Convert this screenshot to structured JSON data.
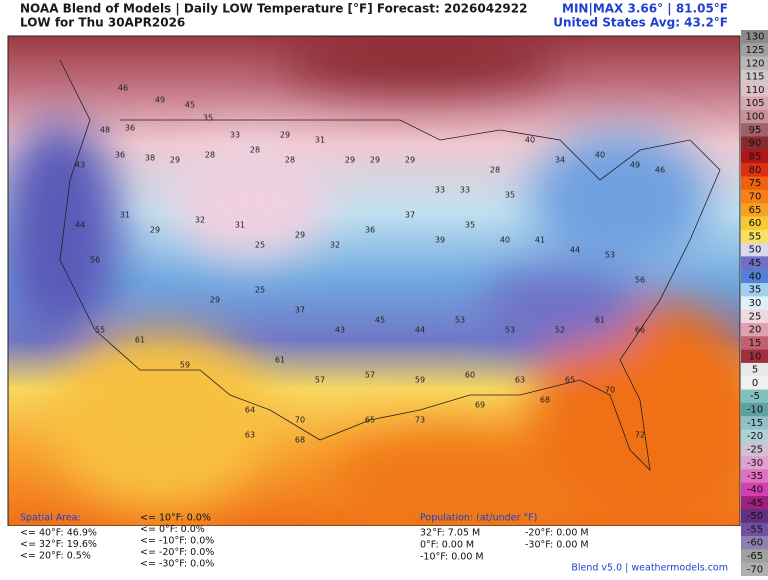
{
  "header": {
    "title": "NOAA Blend of Models | Daily LOW Temperature [°F] Forecast: 2026042922",
    "subtitle": "LOW for Thu 30APR2026",
    "minmax": "MIN|MAX 3.66° | 81.05°F",
    "avg": "United States Avg: 43.2°F"
  },
  "colorbar": {
    "ticks": [
      130,
      125,
      120,
      115,
      110,
      105,
      100,
      95,
      90,
      85,
      80,
      75,
      70,
      65,
      60,
      55,
      50,
      45,
      40,
      35,
      30,
      25,
      20,
      15,
      10,
      5,
      0,
      -5,
      -10,
      -15,
      -20,
      -25,
      -30,
      -35,
      -40,
      -45,
      -50,
      -55,
      -60,
      -65,
      -70
    ],
    "colors": [
      "#8a8a8a",
      "#a0a0a0",
      "#b8b8b8",
      "#d0c8c8",
      "#e0c0c8",
      "#d8a8b0",
      "#c89098",
      "#a06068",
      "#8a2a30",
      "#b01818",
      "#e03010",
      "#f06010",
      "#f88018",
      "#f8a020",
      "#f8c830",
      "#f8e060",
      "#d8d8f0",
      "#7070c8",
      "#5080d8",
      "#a0d0f0",
      "#e0f0f8",
      "#f0d8e0",
      "#e0a0b0",
      "#c06070",
      "#a03040",
      "#e8e8e8",
      "#f0f0f0",
      "#80c0c0",
      "#60a0a0",
      "#90c0c8",
      "#b0d0d8",
      "#d0c0d0",
      "#e0a0d0",
      "#e070c0",
      "#d040b0",
      "#a02080",
      "#603080",
      "#7050a0",
      "#9080b0",
      "#a0a0a0",
      "#b0b0b0"
    ]
  },
  "stations": [
    46,
    49,
    45,
    35,
    48,
    36,
    43,
    36,
    38,
    29,
    28,
    33,
    28,
    29,
    28,
    31,
    29,
    29,
    29,
    33,
    33,
    28,
    35,
    40,
    34,
    40,
    49,
    46,
    44,
    56,
    31,
    29,
    32,
    31,
    25,
    29,
    32,
    36,
    37,
    39,
    35,
    40,
    41,
    44,
    53,
    56,
    55,
    61,
    59,
    29,
    25,
    37,
    43,
    45,
    44,
    53,
    53,
    52,
    61,
    66,
    61,
    57,
    57,
    59,
    60,
    63,
    65,
    70,
    64,
    70,
    65,
    73,
    69,
    68,
    72,
    63,
    68
  ],
  "stats": {
    "spatial_title": "Spatial Area:",
    "spatial": [
      "<= 40°F: 46.9%",
      "<= 32°F: 19.6%",
      "<= 20°F: 0.5%",
      "<= 10°F: 0.0%",
      "<= 0°F: 0.0%",
      "<= -10°F: 0.0%",
      "<= -20°F: 0.0%",
      "<= -30°F: 0.0%"
    ],
    "population_title": "Population: (at/under °F)",
    "population": [
      "32°F: 7.05 M",
      "0°F: 0.00 M",
      "-10°F: 0.00 M",
      "-20°F: 0.00 M",
      "-30°F: 0.00 M"
    ]
  },
  "footer": "Blend v5.0 | weathermodels.com"
}
